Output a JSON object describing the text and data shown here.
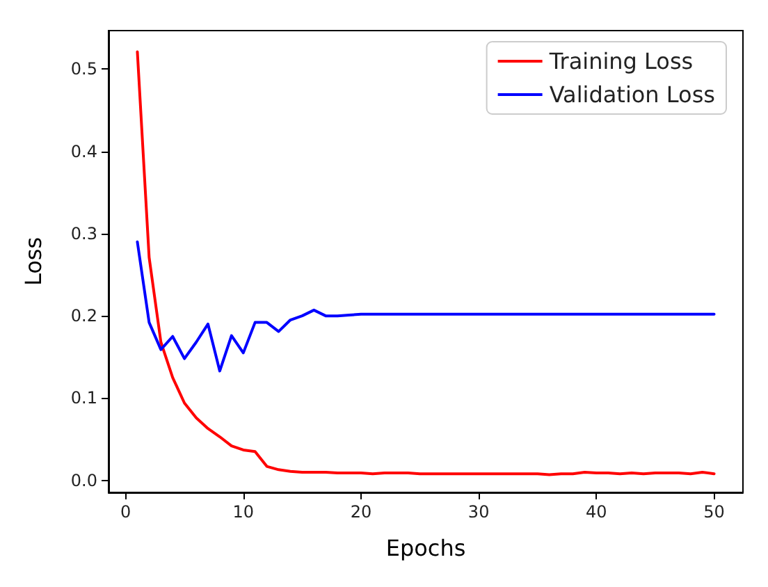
{
  "chart_data": {
    "type": "line",
    "xlabel": "Epochs",
    "ylabel": "Loss",
    "x": [
      1,
      2,
      3,
      4,
      5,
      6,
      7,
      8,
      9,
      10,
      11,
      12,
      13,
      14,
      15,
      16,
      17,
      18,
      19,
      20,
      21,
      22,
      23,
      24,
      25,
      26,
      27,
      28,
      29,
      30,
      31,
      32,
      33,
      34,
      35,
      36,
      37,
      38,
      39,
      40,
      41,
      42,
      43,
      44,
      45,
      46,
      47,
      48,
      49,
      50
    ],
    "series": [
      {
        "name": "Training Loss",
        "color": "#ff0000",
        "values": [
          0.521,
          0.271,
          0.168,
          0.125,
          0.094,
          0.076,
          0.063,
          0.053,
          0.042,
          0.037,
          0.035,
          0.017,
          0.013,
          0.011,
          0.01,
          0.01,
          0.01,
          0.009,
          0.009,
          0.009,
          0.008,
          0.009,
          0.009,
          0.009,
          0.008,
          0.008,
          0.008,
          0.008,
          0.008,
          0.008,
          0.008,
          0.008,
          0.008,
          0.008,
          0.008,
          0.007,
          0.008,
          0.008,
          0.01,
          0.009,
          0.009,
          0.008,
          0.009,
          0.008,
          0.009,
          0.009,
          0.009,
          0.008,
          0.01,
          0.008
        ]
      },
      {
        "name": "Validation Loss",
        "color": "#0000ff",
        "values": [
          0.29,
          0.192,
          0.159,
          0.175,
          0.148,
          0.168,
          0.19,
          0.133,
          0.176,
          0.155,
          0.192,
          0.192,
          0.181,
          0.195,
          0.2,
          0.207,
          0.2,
          0.2,
          0.201,
          0.202,
          0.202,
          0.202,
          0.202,
          0.202,
          0.202,
          0.202,
          0.202,
          0.202,
          0.202,
          0.202,
          0.202,
          0.202,
          0.202,
          0.202,
          0.202,
          0.202,
          0.202,
          0.202,
          0.202,
          0.202,
          0.202,
          0.202,
          0.202,
          0.202,
          0.202,
          0.202,
          0.202,
          0.202,
          0.202,
          0.202
        ]
      }
    ],
    "xlim": [
      -1.45,
      52.45
    ],
    "xticks": [
      0,
      10,
      20,
      30,
      40,
      50
    ],
    "ylim": [
      -0.0146,
      0.5467
    ],
    "yticks": [
      {
        "value": 0,
        "label": "0.0"
      },
      0.1,
      0.2,
      0.3,
      0.4,
      0.5
    ],
    "grid": false,
    "legend": "top right",
    "marker": "none",
    "line_style": "solid"
  }
}
